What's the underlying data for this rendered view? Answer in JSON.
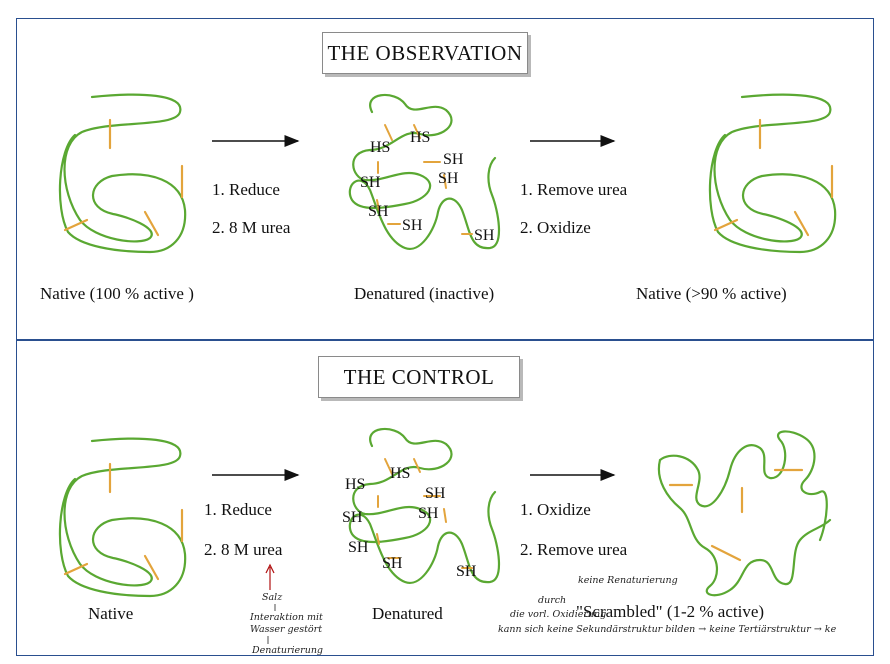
{
  "observation": {
    "title": "THE OBSERVATION",
    "native_label": "Native (100 % active )",
    "denatured_label": "Denatured (inactive)",
    "renatured_label": "Native (>90 % active)",
    "step1_items": [
      "1.  Reduce",
      "2.  8 M urea"
    ],
    "step2_items": [
      "1.  Remove urea",
      "2.  Oxidize"
    ],
    "groups": [
      "HS",
      "HS",
      "SH",
      "SH",
      "SH",
      "SH",
      "SH",
      "SH"
    ]
  },
  "control": {
    "title": "THE CONTROL",
    "native_label": "Native",
    "denatured_label": "Denatured",
    "scrambled_label": "\"Scrambled\" (1-2 % active)",
    "step1_items": [
      "1.  Reduce",
      "2.  8 M urea"
    ],
    "step2_items": [
      "1.  Oxidize",
      "2.  Remove urea"
    ],
    "groups": [
      "HS",
      "HS",
      "SH",
      "SH",
      "SH",
      "SH",
      "SH",
      "SH"
    ]
  },
  "handwriting": {
    "salt": "Salz",
    "interaction_1": "Interaktion mit",
    "interaction_2": "Wasser gestört",
    "denaturation": "Denaturierung",
    "no_renaturation": "keine Renaturierung",
    "through": "durch",
    "early_oxidation": "die vorl. Oxidierung",
    "chain": "kann sich keine Sekundärstruktur bilden → keine Tertiärstruktur → ke"
  },
  "colors": {
    "chain": "#5aa832",
    "disulfide": "#e3a43c",
    "border": "#2a4f8f",
    "annotation_red": "#b01010"
  }
}
